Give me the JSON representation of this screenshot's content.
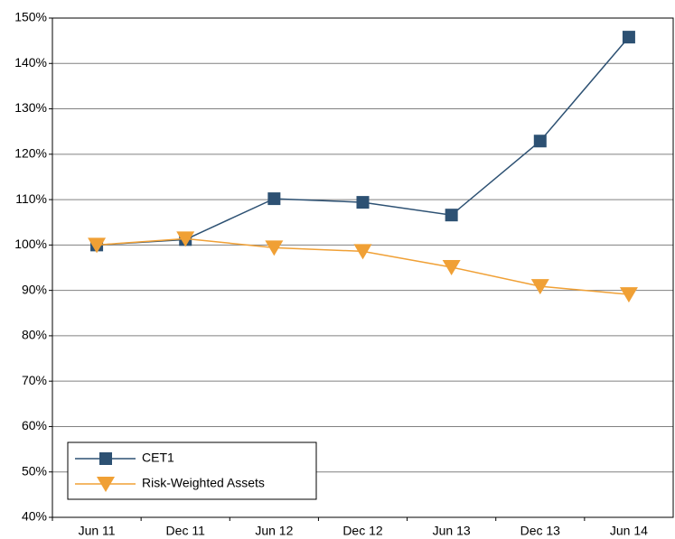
{
  "chart_data": {
    "type": "line",
    "categories": [
      "Jun 11",
      "Dec 11",
      "Jun 12",
      "Dec 12",
      "Jun 13",
      "Dec 13",
      "Jun 14"
    ],
    "series": [
      {
        "name": "CET1",
        "color": "#2d5173",
        "marker": "square",
        "values": [
          100,
          101.2,
          110.2,
          109.4,
          106.6,
          122.9,
          145.8
        ]
      },
      {
        "name": "Risk-Weighted Assets",
        "color": "#f0a035",
        "marker": "triangle-down",
        "values": [
          100,
          101.4,
          99.4,
          98.6,
          95.1,
          90.9,
          89.1
        ]
      }
    ],
    "ylim": [
      40,
      150
    ],
    "yticks": [
      {
        "value": 40,
        "label": "40%"
      },
      {
        "value": 50,
        "label": "50%"
      },
      {
        "value": 60,
        "label": "60%"
      },
      {
        "value": 70,
        "label": "70%"
      },
      {
        "value": 80,
        "label": "80%"
      },
      {
        "value": 90,
        "label": "90%"
      },
      {
        "value": 100,
        "label": "100%"
      },
      {
        "value": 110,
        "label": "110%"
      },
      {
        "value": 120,
        "label": "120%"
      },
      {
        "value": 130,
        "label": "130%"
      },
      {
        "value": 140,
        "label": "140%"
      },
      {
        "value": 150,
        "label": "150%"
      }
    ],
    "grid": true,
    "legend": "lower-left"
  }
}
